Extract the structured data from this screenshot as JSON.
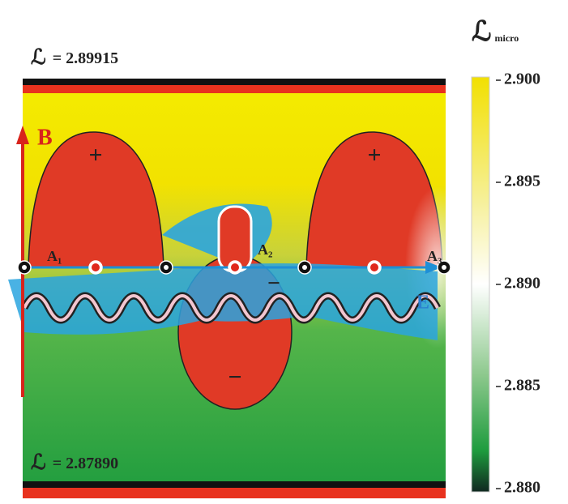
{
  "header": {
    "symbol": "ℒ",
    "subscript": "micro"
  },
  "top_label": {
    "symbol": "ℒ",
    "text": "= 2.89915"
  },
  "bottom_label": {
    "symbol": "ℒ",
    "text": "= 2.87890"
  },
  "field_labels": {
    "b": "B",
    "e": "E"
  },
  "points": [
    "A₁",
    "A₂",
    "A₃"
  ],
  "signs": [
    "+",
    "+",
    "−",
    "−"
  ],
  "colorbar": {
    "lim": [
      2.88,
      2.9
    ],
    "ticks": [
      {
        "value": 2.9,
        "label": "2.900"
      },
      {
        "value": 2.895,
        "label": "2.895"
      },
      {
        "value": 2.89,
        "label": "2.890"
      },
      {
        "value": 2.885,
        "label": "2.885"
      },
      {
        "value": 2.88,
        "label": "2.880"
      }
    ]
  }
}
